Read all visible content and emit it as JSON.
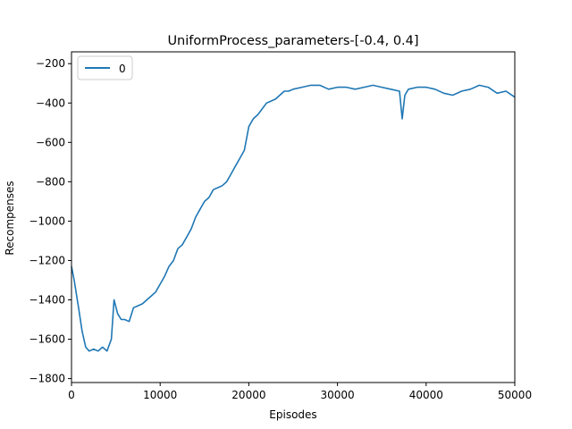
{
  "chart_data": {
    "type": "line",
    "title": "UniformProcess_parameters-[-0.4, 0.4]",
    "xlabel": "Episodes",
    "ylabel": "Recompenses",
    "xlim": [
      0,
      50000
    ],
    "ylim": [
      -1820,
      -140
    ],
    "xticks": [
      0,
      10000,
      20000,
      30000,
      40000,
      50000
    ],
    "xtick_labels": [
      "0",
      "10000",
      "20000",
      "30000",
      "40000",
      "50000"
    ],
    "yticks": [
      -1800,
      -1600,
      -1400,
      -1200,
      -1000,
      -800,
      -600,
      -400,
      -200
    ],
    "ytick_labels": [
      "−1800",
      "−1600",
      "−1400",
      "−1200",
      "−1000",
      "−800",
      "−600",
      "−400",
      "−200"
    ],
    "grid": false,
    "legend": {
      "position": "top-left",
      "entries": [
        "0"
      ]
    },
    "series": [
      {
        "name": "0",
        "color": "#1f77b4",
        "x": [
          0,
          300,
          800,
          1200,
          1600,
          2000,
          2500,
          3000,
          3500,
          4000,
          4500,
          4800,
          5200,
          5600,
          6000,
          6500,
          7000,
          7500,
          8000,
          8500,
          9000,
          9500,
          10000,
          10500,
          11000,
          11500,
          12000,
          12500,
          13000,
          13500,
          14000,
          14500,
          15000,
          15500,
          16000,
          16500,
          17000,
          17500,
          18000,
          18500,
          19000,
          19500,
          20000,
          20500,
          21000,
          21500,
          22000,
          22500,
          23000,
          23500,
          24000,
          24500,
          25000,
          26000,
          27000,
          28000,
          29000,
          30000,
          31000,
          32000,
          33000,
          34000,
          35000,
          36000,
          37000,
          37300,
          37600,
          38000,
          39000,
          40000,
          41000,
          42000,
          43000,
          44000,
          45000,
          46000,
          47000,
          48000,
          49000,
          50000
        ],
        "values": [
          -1230,
          -1300,
          -1440,
          -1560,
          -1640,
          -1660,
          -1650,
          -1660,
          -1640,
          -1660,
          -1600,
          -1400,
          -1470,
          -1500,
          -1500,
          -1510,
          -1440,
          -1430,
          -1420,
          -1400,
          -1380,
          -1360,
          -1320,
          -1280,
          -1230,
          -1200,
          -1140,
          -1120,
          -1080,
          -1040,
          -980,
          -940,
          -900,
          -880,
          -840,
          -830,
          -820,
          -800,
          -760,
          -720,
          -680,
          -640,
          -520,
          -480,
          -460,
          -430,
          -400,
          -390,
          -380,
          -360,
          -340,
          -340,
          -330,
          -320,
          -310,
          -310,
          -330,
          -320,
          -320,
          -330,
          -320,
          -310,
          -320,
          -330,
          -340,
          -480,
          -360,
          -330,
          -320,
          -320,
          -330,
          -350,
          -360,
          -340,
          -330,
          -310,
          -320,
          -350,
          -340,
          -370
        ]
      }
    ]
  }
}
